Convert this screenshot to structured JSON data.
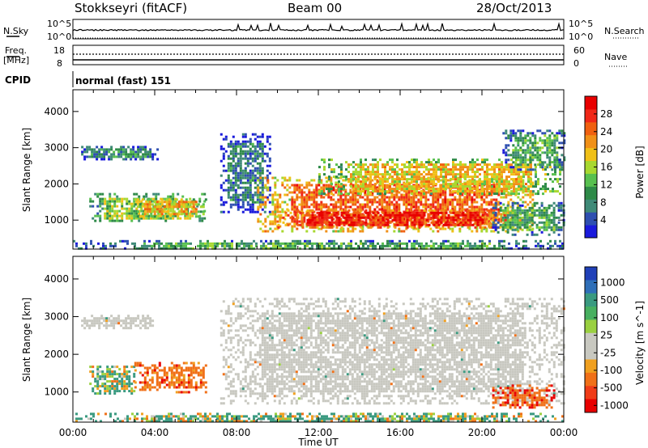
{
  "header": {
    "station": "Stokkseyri (fitACF)",
    "beam": "Beam 00",
    "date": "28/Oct/2013"
  },
  "summary_panels": {
    "nsky_label": "N.Sky",
    "nsky_ticks": [
      "10^5",
      "10^0"
    ],
    "nsearch_label": "N.Search",
    "nsearch_ticks": [
      "10^5",
      "10^0"
    ],
    "freq_label": [
      "Freq.",
      "[MHz]"
    ],
    "freq_ticks": [
      "18",
      "8"
    ],
    "nave_label": "Nave",
    "nave_ticks": [
      "60",
      "0"
    ],
    "cpid_label": "CPID",
    "cpid_value": "normal (fast) 151"
  },
  "colors": {
    "power_scale": [
      "#1a1adc",
      "#2e4fb0",
      "#3f8a78",
      "#2e8a48",
      "#58c050",
      "#a8d830",
      "#f0c018",
      "#f09018",
      "#f06010",
      "#f02818",
      "#e80000"
    ],
    "velocity_scale": [
      "#2040b8",
      "#2f6fb8",
      "#3a9a80",
      "#48b060",
      "#9ad040",
      "#c8c8c0",
      "#c8c8c0",
      "#f0a020",
      "#f07018",
      "#f03c18",
      "#e80000"
    ],
    "ground_scatter": "#c8c8c0"
  },
  "chart_data": [
    {
      "type": "heatmap",
      "panel": "power",
      "ylabel": "Slant Range [km]",
      "xlim": [
        "00:00",
        "24:00"
      ],
      "ylim": [
        200,
        4600
      ],
      "y_ticks": [
        "1000",
        "2000",
        "3000",
        "4000"
      ],
      "colorbar_label": "Power [dB]",
      "colorbar_ticks": [
        "4",
        "8",
        "12",
        "16",
        "20",
        "24",
        "28"
      ],
      "colorbar_range": [
        0,
        30
      ],
      "regions": [
        {
          "t0": 0.4,
          "t1": 4.2,
          "r0": 2700,
          "r1": 3050,
          "level": 8
        },
        {
          "t0": 0.8,
          "t1": 6.5,
          "r0": 950,
          "r1": 1750,
          "level": 14
        },
        {
          "t0": 3.0,
          "t1": 6.5,
          "r0": 1100,
          "r1": 1600,
          "level": 20
        },
        {
          "t0": 7.2,
          "t1": 9.6,
          "r0": 1200,
          "r1": 3400,
          "level": 6
        },
        {
          "t0": 9.0,
          "t1": 22.5,
          "r0": 700,
          "r1": 2200,
          "level": 24
        },
        {
          "t0": 10.0,
          "t1": 21.5,
          "r0": 800,
          "r1": 1300,
          "level": 28
        },
        {
          "t0": 12.0,
          "t1": 23.8,
          "r0": 1700,
          "r1": 2700,
          "level": 18
        },
        {
          "t0": 20.5,
          "t1": 24.0,
          "r0": 600,
          "r1": 1500,
          "level": 10
        },
        {
          "t0": 21.0,
          "t1": 24.0,
          "r0": 2400,
          "r1": 3500,
          "level": 10
        },
        {
          "t0": 0.0,
          "t1": 24.0,
          "r0": 200,
          "r1": 450,
          "level": 10
        }
      ]
    },
    {
      "type": "heatmap",
      "panel": "velocity",
      "ylabel": "Slant Range [km]",
      "xlabel": "Time UT",
      "x_ticks": [
        "00:00",
        "04:00",
        "08:00",
        "12:00",
        "16:00",
        "20:00",
        "00:00"
      ],
      "xlim": [
        "00:00",
        "24:00"
      ],
      "ylim": [
        200,
        4600
      ],
      "y_ticks": [
        "1000",
        "2000",
        "3000",
        "4000"
      ],
      "colorbar_label": "Velocity [m s^-1]",
      "colorbar_ticks": [
        "1000",
        "500",
        "100",
        "25",
        "-25",
        "-100",
        "-500",
        "-1000"
      ],
      "regions": [
        {
          "t0": 0.4,
          "t1": 4.2,
          "r0": 2700,
          "r1": 3050,
          "velocity": 0
        },
        {
          "t0": 0.8,
          "t1": 3.0,
          "r0": 950,
          "r1": 1700,
          "velocity": 100
        },
        {
          "t0": 3.0,
          "t1": 6.5,
          "r0": 1000,
          "r1": 1800,
          "velocity": -300
        },
        {
          "t0": 7.2,
          "t1": 24.0,
          "r0": 700,
          "r1": 3500,
          "velocity": 0
        },
        {
          "t0": 20.5,
          "t1": 23.5,
          "r0": 600,
          "r1": 1200,
          "velocity": -400
        },
        {
          "t0": 0.0,
          "t1": 24.0,
          "r0": 200,
          "r1": 450,
          "velocity": 100
        }
      ]
    }
  ]
}
